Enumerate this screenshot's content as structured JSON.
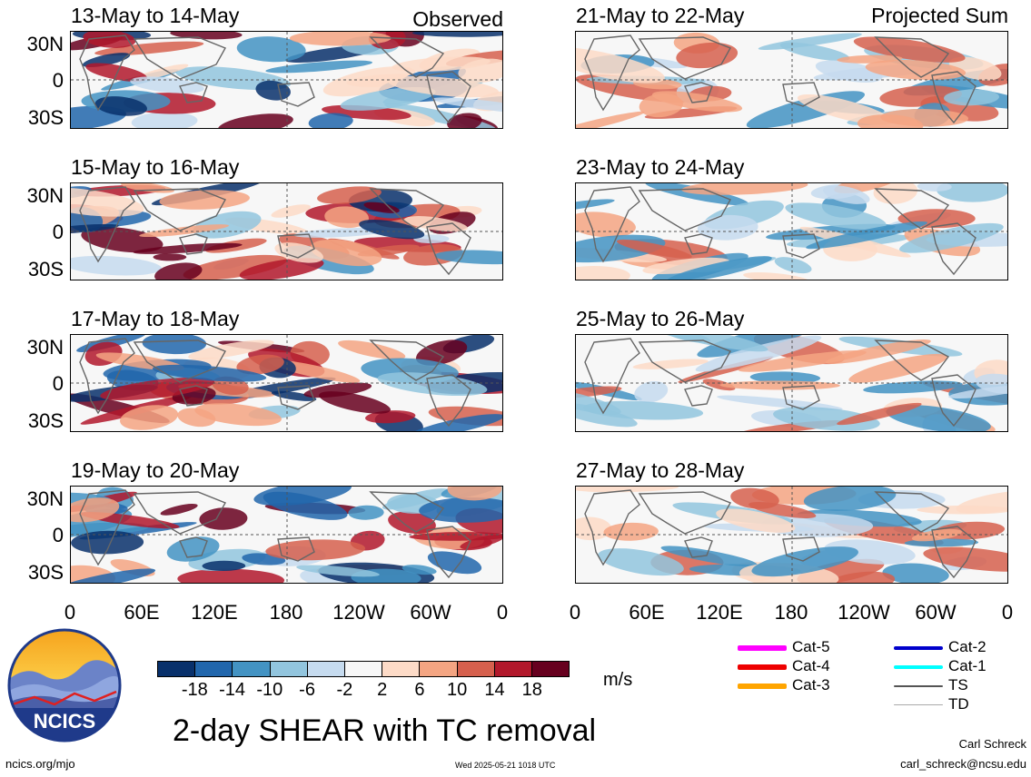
{
  "headers": {
    "observed_label": "Observed",
    "projected_label": "Projected Sum"
  },
  "panels_left": [
    {
      "title": "13-May to 14-May",
      "seed": 3
    },
    {
      "title": "15-May to 16-May",
      "seed": 11
    },
    {
      "title": "17-May to 18-May",
      "seed": 23
    },
    {
      "title": "19-May to 20-May",
      "seed": 37
    }
  ],
  "panels_right": [
    {
      "title": "21-May to 22-May",
      "seed": 5
    },
    {
      "title": "23-May to 24-May",
      "seed": 17
    },
    {
      "title": "25-May to 26-May",
      "seed": 29
    },
    {
      "title": "27-May to 28-May",
      "seed": 41
    }
  ],
  "lat_labels": [
    "30N",
    "0",
    "30S"
  ],
  "lon_labels": [
    "0",
    "60E",
    "120E",
    "180",
    "120W",
    "60W",
    "0"
  ],
  "colorbar": {
    "colors": [
      "#08306b",
      "#2166ac",
      "#4393c3",
      "#92c5de",
      "#c6dbef",
      "#f7f7f7",
      "#fddbc7",
      "#f4a582",
      "#d6604d",
      "#b2182b",
      "#67001f"
    ],
    "labels": [
      "-18",
      "-14",
      "-10",
      "-6",
      "-2",
      "2",
      "6",
      "10",
      "14",
      "18"
    ],
    "units": "m/s"
  },
  "main_title": "2-day SHEAR with TC removal",
  "legend": [
    {
      "label": "Cat-5",
      "color": "#ff00ff",
      "weight": "thick"
    },
    {
      "label": "Cat-4",
      "color": "#ee0000",
      "weight": "thick"
    },
    {
      "label": "Cat-3",
      "color": "#ffa500",
      "weight": "thick"
    },
    {
      "label": "Cat-2",
      "color": "#0000cc",
      "weight": "medium"
    },
    {
      "label": "Cat-1",
      "color": "#00ffff",
      "weight": "medium"
    },
    {
      "label": "TS",
      "color": "#555555",
      "weight": "thin"
    },
    {
      "label": "TD",
      "color": "#aaaaaa",
      "weight": "hair"
    }
  ],
  "footer": {
    "logo_text": "NCICS",
    "site": "ncics.org/mjo",
    "timestamp": "Wed 2025-05-21 1018 UTC",
    "author": "Carl Schreck",
    "email": "carl_schreck@ncsu.edu"
  }
}
